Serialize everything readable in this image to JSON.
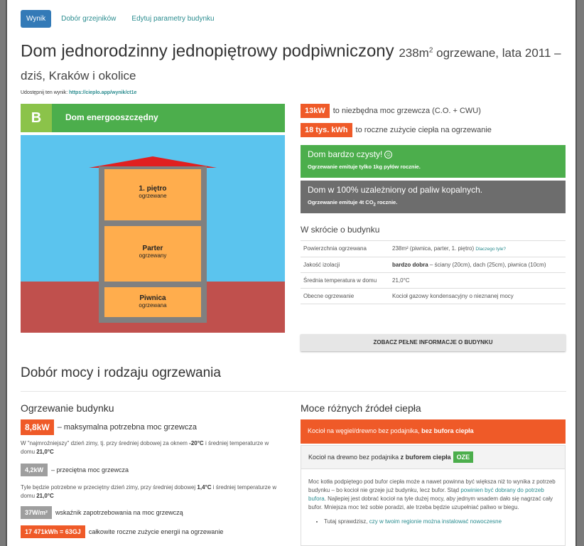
{
  "tabs": [
    {
      "label": "Wynik",
      "active": true
    },
    {
      "label": "Dobór grzejników",
      "active": false
    },
    {
      "label": "Edytuj parametry budynku",
      "active": false
    }
  ],
  "title": {
    "main": "Dom jednorodzinny jednopiętrowy podpiwniczony",
    "sub_area": "238m",
    "sub_sup": "2",
    "sub_rest": " ogrzewane, lata 2011 – dziś, Kraków i okolice"
  },
  "share": {
    "label": "Udostępnij ten wynik:",
    "link": "https://cieplo.app/wynik/ct1e"
  },
  "energy": {
    "letter": "B",
    "label": "Dom energooszczędny"
  },
  "house": {
    "floors": [
      {
        "name": "1. piętro",
        "state": "ogrzewane"
      },
      {
        "name": "Parter",
        "state": "ogrzewany"
      },
      {
        "name": "Piwnica",
        "state": "ogrzewana"
      }
    ]
  },
  "stats": [
    {
      "badge": "13kW",
      "text": "to niezbędna moc grzewcza (C.O. + CWU)"
    },
    {
      "badge": "18 tys. kWh",
      "text": "to roczne zużycie ciepła na ogrzewanie"
    }
  ],
  "clean_box": {
    "title": "Dom bardzo czysty!",
    "smile": "☺",
    "note_pre": "Ogrzewanie emituje tylko ",
    "note_val": "1kg pyłów",
    "note_post": " rocznie."
  },
  "fossil_box": {
    "title": "Dom w 100% uzależniony od paliw kopalnych.",
    "note_pre": "Ogrzewanie emituje ",
    "note_val": "4t CO",
    "note_sub": "2",
    "note_post": " rocznie."
  },
  "summary": {
    "title": "W skrócie o budynku",
    "rows": [
      {
        "key": "Powierzchnia ogrzewana",
        "value": "238m² (piwnica, parter, 1. piętro)",
        "link": "Dlaczego tyle?"
      },
      {
        "key": "Jakość izolacji",
        "value_bold": "bardzo dobra",
        "value": " – ściany (20cm), dach (25cm), piwnica (10cm)"
      },
      {
        "key": "Średnia temperatura w domu",
        "value": "21,0°C"
      },
      {
        "key": "Obecne ogrzewanie",
        "value": "Kocioł gazowy kondensacyjny o nieznanej mocy"
      }
    ],
    "button": "ZOBACZ PEŁNE INFORMACJE O BUDYNKU"
  },
  "section_title": "Dobór mocy i rodzaju ogrzewania",
  "heating": {
    "title": "Ogrzewanie budynku",
    "max": {
      "badge": "8,8kW",
      "text": "– maksymalna potrzebna moc grzewcza"
    },
    "max_note_1": "W \"najmroźniejszy\" dzień zimy, tj. przy średniej dobowej za oknem ",
    "max_note_temp": "-20°C",
    "max_note_2": " i średniej temperaturze w domu ",
    "max_note_home": "21,0°C",
    "avg": {
      "badge": "4,2kW",
      "text": "– przeciętna moc grzewcza"
    },
    "avg_note_1": "Tyle będzie potrzebne w przeciętny dzień zimy, przy średniej dobowej ",
    "avg_note_temp": "1,4°C",
    "avg_note_2": " i średniej temperaturze w domu ",
    "avg_note_home": "21,0°C",
    "index": {
      "badge": "37W/m²",
      "text": "wskaźnik zapotrzebowania na moc grzewczą"
    },
    "annual": {
      "badge": "17 471kWh = 63GJ",
      "text": "całkowite roczne zużycie energii na ogrzewanie"
    }
  },
  "sources": {
    "title": "Moce różnych źródeł ciepła",
    "item1_pre": "Kocioł na węgiel/drewno bez podajnika, ",
    "item1_bold": "bez bufora ciepła",
    "item2_pre": "Kocioł na drewno bez podajnika ",
    "item2_bold": "z buforem ciepła",
    "item2_badge": "OZE",
    "body_1": "Moc kotła podpiętego pod bufor ciepła może a nawet powinna być większa niż to wynika z potrzeb budynku – bo kocioł nie grzeje już budynku, lecz bufor. Stąd ",
    "body_link": "powinien być dobrany do potrzeb bufora",
    "body_2": ". Najlepiej jest dobrać kocioł na tyle dużej mocy, aby jednym wsadem dało się nagrzać cały bufor. Mniejsza moc też sobie poradzi, ale trzeba będzie uzupełniać paliwo w biegu.",
    "bullet_pre": "Tutaj sprawdzisz, ",
    "bullet_link": "czy w twoim regionie można instalować nowoczesne"
  }
}
